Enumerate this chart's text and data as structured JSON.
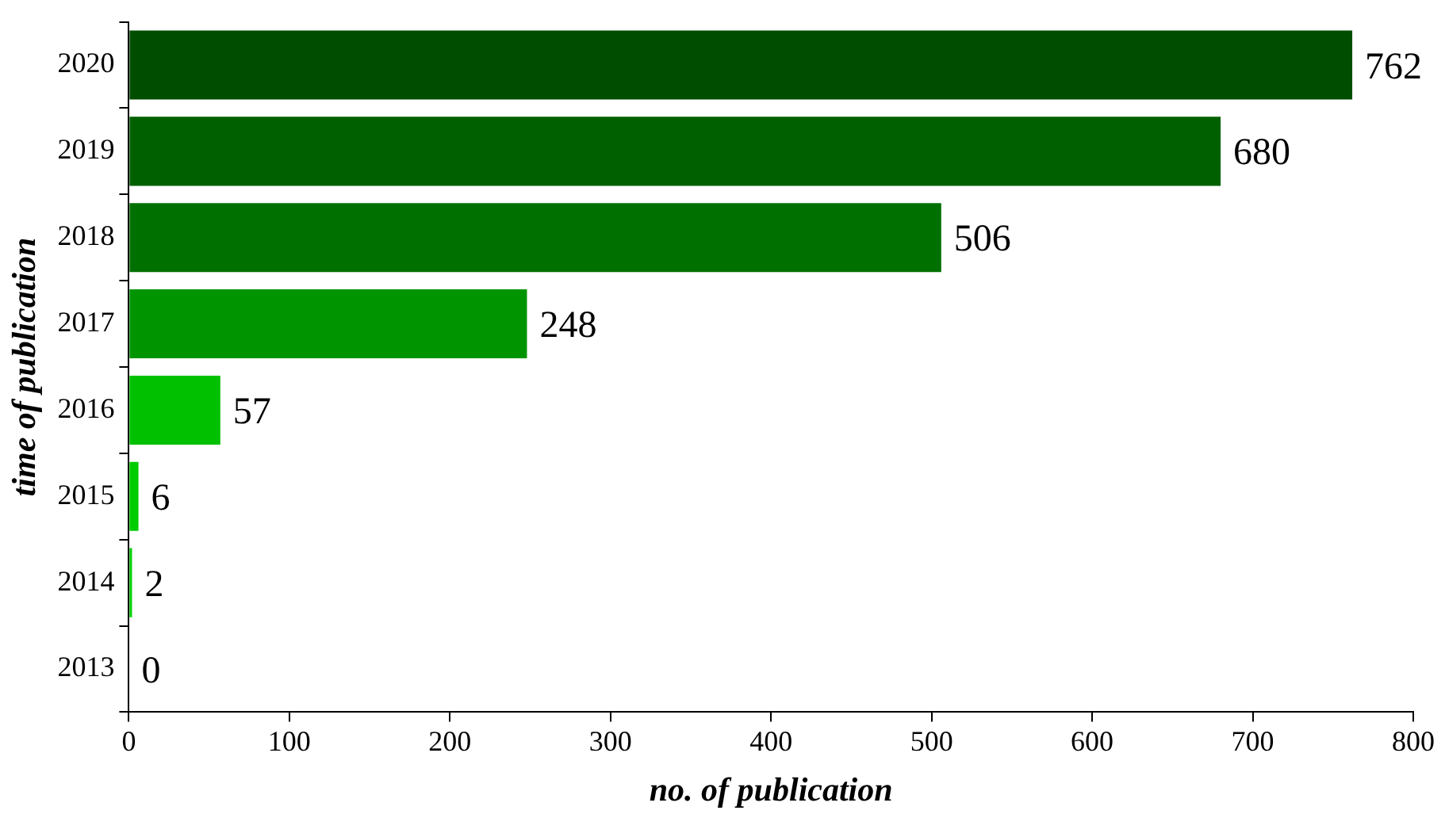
{
  "chart_data": {
    "type": "bar",
    "orientation": "horizontal",
    "xlabel": "no. of publication",
    "ylabel": "time of publication",
    "categories": [
      "2020",
      "2019",
      "2018",
      "2017",
      "2016",
      "2015",
      "2014",
      "2013"
    ],
    "values": [
      762,
      680,
      506,
      248,
      57,
      6,
      2,
      0
    ],
    "colors": [
      "#004d00",
      "#006000",
      "#007000",
      "#009400",
      "#00c000",
      "#00cc00",
      "#00d000",
      "#00d400"
    ],
    "xlim": [
      0,
      800
    ],
    "xticks": [
      0,
      100,
      200,
      300,
      400,
      500,
      600,
      700,
      800
    ],
    "data_labels": true,
    "grid": false,
    "legend": false
  }
}
